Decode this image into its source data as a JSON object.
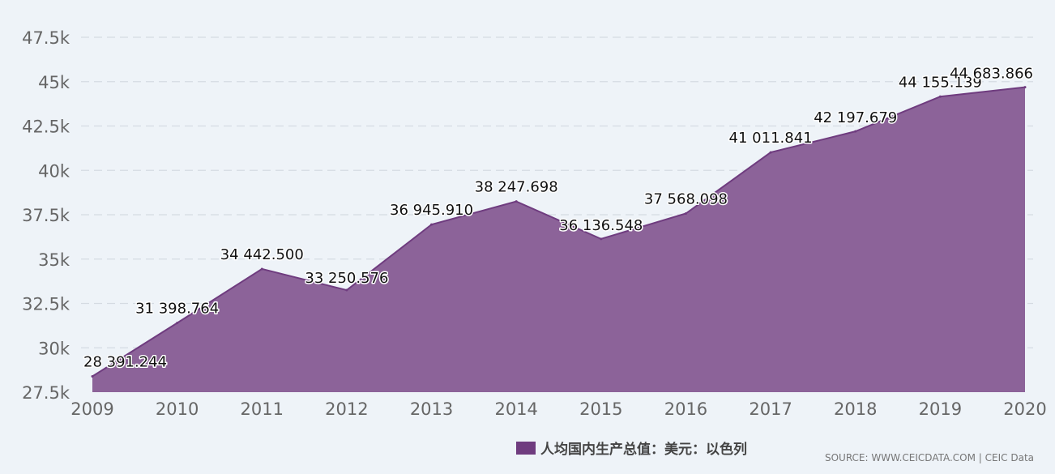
{
  "chart_data": {
    "type": "area",
    "x": [
      "2009",
      "2010",
      "2011",
      "2012",
      "2013",
      "2014",
      "2015",
      "2016",
      "2017",
      "2018",
      "2019",
      "2020"
    ],
    "series": [
      {
        "name": "人均国内生产总值：美元：以色列",
        "values": [
          28391.244,
          31398.764,
          34442.5,
          33250.576,
          36945.91,
          38247.698,
          36136.548,
          37568.098,
          41011.841,
          42197.679,
          44155.139,
          44683.866
        ],
        "labels": [
          "28 391.244",
          "31 398.764",
          "34 442.500",
          "33 250.576",
          "36 945.910",
          "38 247.698",
          "36 136.548",
          "37 568.098",
          "41 011.841",
          "42 197.679",
          "44 155.139",
          "44 683.866"
        ],
        "color": "#8c6399",
        "line_color": "#6f3c7f"
      }
    ],
    "ylim": [
      27500,
      47500
    ],
    "yticks": [
      27500,
      30000,
      32500,
      35000,
      37500,
      40000,
      42500,
      45000,
      47500
    ],
    "ytick_labels": [
      "27.5k",
      "30k",
      "32.5k",
      "35k",
      "37.5k",
      "40k",
      "42.5k",
      "45k",
      "47.5k"
    ],
    "grid": true,
    "legend_position": "bottom-center"
  },
  "legend": {
    "label": "人均国内生产总值：美元：以色列",
    "color": "#6f3c7f"
  },
  "source": "SOURCE: WWW.CEICDATA.COM | CEIC Data"
}
